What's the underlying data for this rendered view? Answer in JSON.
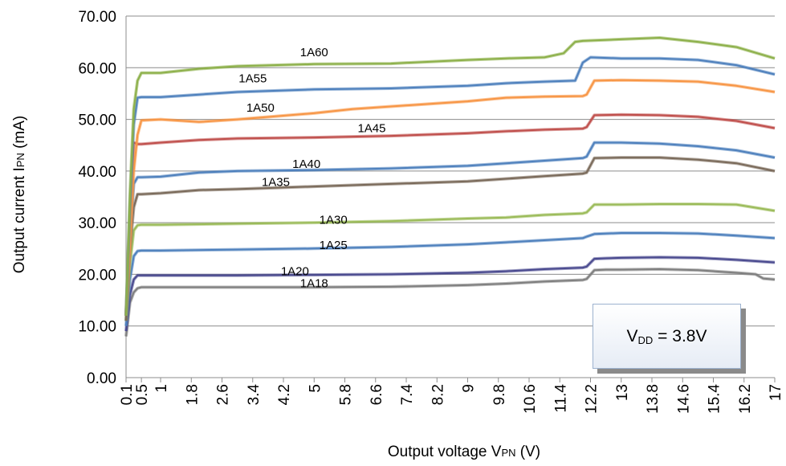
{
  "chart_data": {
    "type": "line",
    "title": "",
    "xlabel": {
      "prefix": "Output voltage V",
      "sub": "PN",
      "suffix": " (V)"
    },
    "ylabel": {
      "prefix": "Output current I",
      "sub": "PN",
      "suffix": " (mA)"
    },
    "ylim": [
      0,
      70
    ],
    "yticks": [
      "0.00",
      "10.00",
      "20.00",
      "30.00",
      "40.00",
      "50.00",
      "60.00",
      "70.00"
    ],
    "categories": [
      "0.1",
      "0.5",
      "1",
      "1.8",
      "2.6",
      "3.4",
      "4.2",
      "5",
      "5.8",
      "6.6",
      "7.4",
      "8.2",
      "9",
      "9.8",
      "10.6",
      "11.4",
      "12.2",
      "13",
      "13.8",
      "14.6",
      "15.4",
      "16.2",
      "17"
    ],
    "grid": true,
    "legend": "none",
    "annotation": {
      "prefix": "V",
      "sub": "DD",
      "suffix": " = 3.8V"
    },
    "series": [
      {
        "name": "1A18",
        "color": "#7f7f7f",
        "label_at": [
          5.0,
          17.5
        ],
        "points": [
          [
            0.1,
            8
          ],
          [
            0.2,
            14.5
          ],
          [
            0.3,
            16.5
          ],
          [
            0.4,
            17.3
          ],
          [
            0.5,
            17.5
          ],
          [
            1,
            17.5
          ],
          [
            3,
            17.5
          ],
          [
            5,
            17.5
          ],
          [
            7,
            17.6
          ],
          [
            9,
            17.9
          ],
          [
            10,
            18.2
          ],
          [
            11,
            18.6
          ],
          [
            12,
            18.9
          ],
          [
            12.1,
            19.1
          ],
          [
            12.3,
            20.8
          ],
          [
            12.6,
            20.9
          ],
          [
            13,
            20.9
          ],
          [
            14,
            21.0
          ],
          [
            15,
            20.8
          ],
          [
            16,
            20.3
          ],
          [
            16.5,
            20.0
          ],
          [
            16.7,
            19.2
          ],
          [
            17,
            19.0
          ]
        ]
      },
      {
        "name": "1A20",
        "color": "#4a4a8f",
        "label_at": [
          4.5,
          19.8
        ],
        "points": [
          [
            0.1,
            9
          ],
          [
            0.2,
            16
          ],
          [
            0.3,
            19
          ],
          [
            0.4,
            19.8
          ],
          [
            0.5,
            19.8
          ],
          [
            1,
            19.8
          ],
          [
            3,
            19.8
          ],
          [
            5,
            19.9
          ],
          [
            7,
            20.0
          ],
          [
            9,
            20.3
          ],
          [
            10,
            20.6
          ],
          [
            11,
            21.0
          ],
          [
            12,
            21.3
          ],
          [
            12.1,
            21.5
          ],
          [
            12.3,
            23.0
          ],
          [
            12.6,
            23.1
          ],
          [
            13,
            23.2
          ],
          [
            14,
            23.3
          ],
          [
            15,
            23.2
          ],
          [
            16,
            22.8
          ],
          [
            17,
            22.3
          ]
        ]
      },
      {
        "name": "1A25",
        "color": "#4f81bd",
        "label_at": [
          5.5,
          24.9
        ],
        "points": [
          [
            0.1,
            10
          ],
          [
            0.2,
            19
          ],
          [
            0.3,
            23.5
          ],
          [
            0.4,
            24.5
          ],
          [
            0.5,
            24.6
          ],
          [
            1,
            24.6
          ],
          [
            3,
            24.8
          ],
          [
            5,
            25.0
          ],
          [
            7,
            25.3
          ],
          [
            9,
            25.8
          ],
          [
            10,
            26.2
          ],
          [
            11,
            26.6
          ],
          [
            12,
            27.0
          ],
          [
            12.1,
            27.3
          ],
          [
            12.3,
            27.8
          ],
          [
            13,
            28.0
          ],
          [
            14,
            28.0
          ],
          [
            15,
            27.9
          ],
          [
            16,
            27.5
          ],
          [
            17,
            27.0
          ]
        ]
      },
      {
        "name": "1A30",
        "color": "#9bbb59",
        "label_at": [
          5.5,
          29.8
        ],
        "points": [
          [
            0.1,
            11
          ],
          [
            0.2,
            22
          ],
          [
            0.3,
            28.5
          ],
          [
            0.4,
            29.5
          ],
          [
            0.5,
            29.6
          ],
          [
            1,
            29.6
          ],
          [
            3,
            29.8
          ],
          [
            5,
            30.0
          ],
          [
            7,
            30.3
          ],
          [
            9,
            30.8
          ],
          [
            10,
            31.0
          ],
          [
            11,
            31.5
          ],
          [
            12,
            31.8
          ],
          [
            12.1,
            32
          ],
          [
            12.3,
            33.5
          ],
          [
            13,
            33.5
          ],
          [
            14,
            33.6
          ],
          [
            15,
            33.6
          ],
          [
            16,
            33.5
          ],
          [
            17,
            32.3
          ]
        ]
      },
      {
        "name": "1A35",
        "color": "#7a6a5a",
        "label_at": [
          4.0,
          37.1
        ],
        "points": [
          [
            0.1,
            11
          ],
          [
            0.2,
            25
          ],
          [
            0.3,
            33
          ],
          [
            0.4,
            35.5
          ],
          [
            0.5,
            35.5
          ],
          [
            1,
            35.7
          ],
          [
            2,
            36.3
          ],
          [
            3,
            36.5
          ],
          [
            5,
            37.0
          ],
          [
            7,
            37.5
          ],
          [
            9,
            38.0
          ],
          [
            10,
            38.5
          ],
          [
            11,
            39.0
          ],
          [
            12,
            39.5
          ],
          [
            12.1,
            39.7
          ],
          [
            12.3,
            42.5
          ],
          [
            13,
            42.6
          ],
          [
            14,
            42.6
          ],
          [
            15,
            42.2
          ],
          [
            16,
            41.5
          ],
          [
            17,
            40.0
          ]
        ]
      },
      {
        "name": "1A40",
        "color": "#4f81bd",
        "label_at": [
          4.8,
          40.6
        ],
        "points": [
          [
            0.1,
            12
          ],
          [
            0.2,
            27
          ],
          [
            0.3,
            37.5
          ],
          [
            0.4,
            38.8
          ],
          [
            0.5,
            38.8
          ],
          [
            1,
            38.9
          ],
          [
            2,
            39.7
          ],
          [
            3,
            40.0
          ],
          [
            5,
            40.2
          ],
          [
            7,
            40.5
          ],
          [
            9,
            41.0
          ],
          [
            10,
            41.5
          ],
          [
            11,
            42.0
          ],
          [
            12,
            42.5
          ],
          [
            12.1,
            42.8
          ],
          [
            12.3,
            45.5
          ],
          [
            13,
            45.5
          ],
          [
            14,
            45.3
          ],
          [
            15,
            44.8
          ],
          [
            16,
            44.0
          ],
          [
            17,
            42.6
          ]
        ]
      },
      {
        "name": "1A45",
        "color": "#c0504d",
        "label_at": [
          6.5,
          47.5
        ],
        "points": [
          [
            0.1,
            12
          ],
          [
            0.2,
            30
          ],
          [
            0.3,
            45.5
          ],
          [
            0.4,
            45.2
          ],
          [
            0.5,
            45.2
          ],
          [
            1,
            45.5
          ],
          [
            2,
            46.0
          ],
          [
            3,
            46.3
          ],
          [
            5,
            46.5
          ],
          [
            7,
            46.8
          ],
          [
            9,
            47.3
          ],
          [
            10,
            47.7
          ],
          [
            11,
            48.0
          ],
          [
            12,
            48.2
          ],
          [
            12.1,
            48.5
          ],
          [
            12.3,
            50.8
          ],
          [
            13,
            50.9
          ],
          [
            14,
            50.8
          ],
          [
            15,
            50.5
          ],
          [
            16,
            49.7
          ],
          [
            17,
            48.3
          ]
        ]
      },
      {
        "name": "1A50",
        "color": "#f79646",
        "label_at": [
          3.6,
          51.5
        ],
        "points": [
          [
            0.1,
            12
          ],
          [
            0.2,
            25
          ],
          [
            0.3,
            40
          ],
          [
            0.4,
            47
          ],
          [
            0.5,
            49.8
          ],
          [
            1,
            50.0
          ],
          [
            2,
            49.5
          ],
          [
            3,
            50.0
          ],
          [
            5,
            51.2
          ],
          [
            6,
            52.0
          ],
          [
            7,
            52.5
          ],
          [
            9,
            53.5
          ],
          [
            10,
            54.2
          ],
          [
            11,
            54.4
          ],
          [
            12,
            54.5
          ],
          [
            12.1,
            54.8
          ],
          [
            12.3,
            57.5
          ],
          [
            13,
            57.6
          ],
          [
            14,
            57.5
          ],
          [
            15,
            57.3
          ],
          [
            16,
            56.5
          ],
          [
            17,
            55.3
          ]
        ]
      },
      {
        "name": "1A55",
        "color": "#4f81bd",
        "label_at": [
          3.4,
          57.2
        ],
        "points": [
          [
            0.1,
            12
          ],
          [
            0.2,
            33
          ],
          [
            0.3,
            49
          ],
          [
            0.4,
            54.2
          ],
          [
            0.5,
            54.3
          ],
          [
            1,
            54.3
          ],
          [
            2,
            54.8
          ],
          [
            3,
            55.3
          ],
          [
            5,
            55.8
          ],
          [
            7,
            56.0
          ],
          [
            9,
            56.5
          ],
          [
            10,
            57.0
          ],
          [
            11,
            57.3
          ],
          [
            11.8,
            57.5
          ],
          [
            12,
            61
          ],
          [
            12.2,
            62
          ],
          [
            13,
            61.8
          ],
          [
            14,
            61.8
          ],
          [
            15,
            61.5
          ],
          [
            16,
            60.5
          ],
          [
            17,
            58.7
          ]
        ]
      },
      {
        "name": "1A60",
        "color": "#8db04a",
        "label_at": [
          5.0,
          62.2
        ],
        "points": [
          [
            0.1,
            12
          ],
          [
            0.2,
            35
          ],
          [
            0.3,
            52
          ],
          [
            0.4,
            57.5
          ],
          [
            0.5,
            59.0
          ],
          [
            1,
            59.0
          ],
          [
            2,
            59.8
          ],
          [
            3,
            60.3
          ],
          [
            5,
            60.7
          ],
          [
            7,
            60.8
          ],
          [
            9,
            61.5
          ],
          [
            10,
            61.8
          ],
          [
            11,
            62.0
          ],
          [
            11.5,
            62.8
          ],
          [
            11.8,
            65
          ],
          [
            12,
            65.2
          ],
          [
            13,
            65.5
          ],
          [
            14,
            65.8
          ],
          [
            15,
            65.0
          ],
          [
            16,
            64.0
          ],
          [
            17,
            61.8
          ]
        ]
      }
    ]
  }
}
